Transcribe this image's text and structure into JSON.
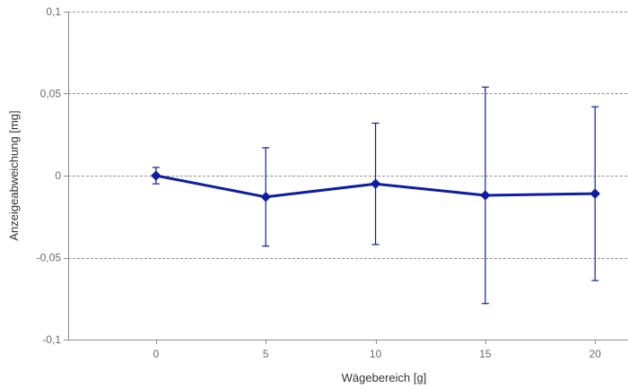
{
  "chart_data": {
    "type": "line",
    "xlabel": "Wägebereich [g]",
    "ylabel": "Anzeigeabweichung [mg]",
    "xlim": [
      -4,
      21.5
    ],
    "ylim": [
      -0.1,
      0.1
    ],
    "x_ticks": [
      0,
      5,
      10,
      15,
      20
    ],
    "x_tick_labels": [
      "0",
      "5",
      "10",
      "15",
      "20"
    ],
    "y_ticks": [
      -0.1,
      -0.05,
      0,
      0.05,
      0.1
    ],
    "y_tick_labels": [
      "-0,1",
      "-0,05",
      "0",
      "0,05",
      "0,1"
    ],
    "grid": {
      "horizontal": true,
      "style": "dashed"
    },
    "legend": "none",
    "series": [
      {
        "x": [
          0,
          5,
          10,
          15,
          20
        ],
        "y": [
          0,
          -0.013,
          -0.005,
          -0.012,
          -0.011
        ],
        "error_low": [
          -0.005,
          -0.043,
          -0.042,
          -0.078,
          -0.064
        ],
        "error_high": [
          0.005,
          0.017,
          0.032,
          0.054,
          0.042
        ],
        "color": "#0d1ea0",
        "marker": "diamond"
      }
    ]
  }
}
